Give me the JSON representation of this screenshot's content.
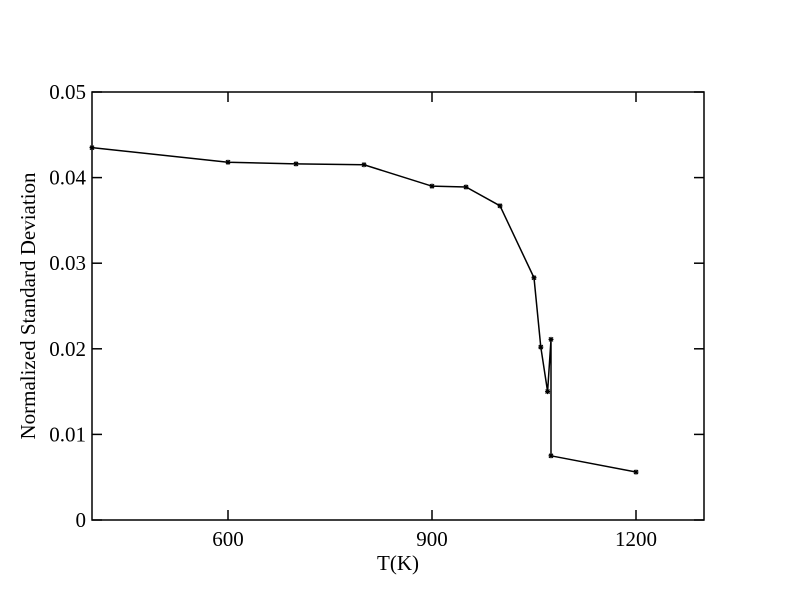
{
  "chart_data": {
    "type": "line",
    "x_label": "T(K)",
    "y_label": "Normalized Standard Deviation",
    "x": [
      400,
      600,
      700,
      800,
      900,
      950,
      1000,
      1050,
      1060,
      1070,
      1075,
      1075,
      1200
    ],
    "series": [
      {
        "color": "#000000",
        "values": [
          0.0435,
          0.0418,
          0.0416,
          0.0415,
          0.039,
          0.0389,
          0.0367,
          0.0283,
          0.0202,
          0.015,
          0.0211,
          0.0075,
          0.0056
        ]
      }
    ],
    "xlim": [
      400,
      1300
    ],
    "xticks": [
      600,
      900,
      1200
    ],
    "ylim": [
      0,
      0.05
    ],
    "yticks": [
      0,
      0.01,
      0.02,
      0.03,
      0.04,
      0.05
    ],
    "grid": false
  }
}
